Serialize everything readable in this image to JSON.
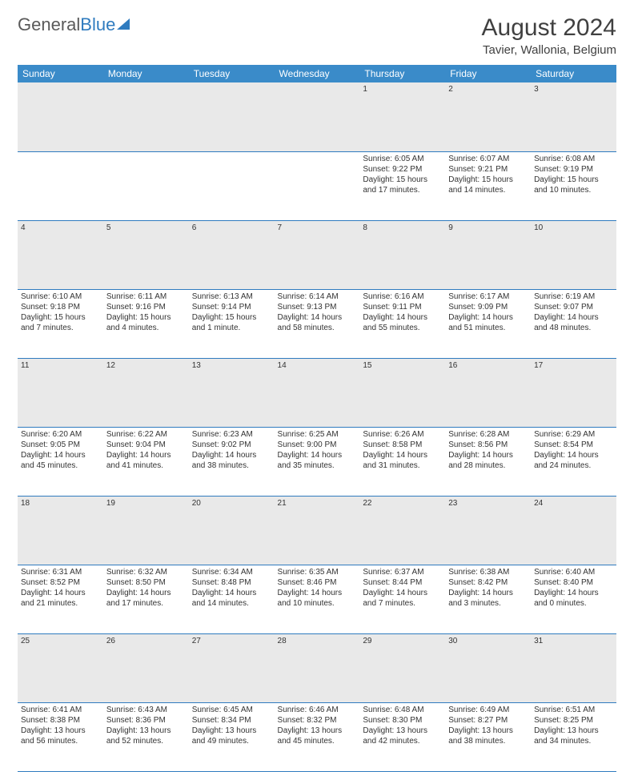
{
  "logo": {
    "text1": "General",
    "text2": "Blue"
  },
  "title": "August 2024",
  "location": "Tavier, Wallonia, Belgium",
  "colors": {
    "header_bg": "#3a8bc9",
    "header_text": "#ffffff",
    "daynum_bg": "#e9e9e9",
    "border": "#2f7bbf",
    "text": "#333333"
  },
  "day_headers": [
    "Sunday",
    "Monday",
    "Tuesday",
    "Wednesday",
    "Thursday",
    "Friday",
    "Saturday"
  ],
  "weeks": [
    {
      "nums": [
        "",
        "",
        "",
        "",
        "1",
        "2",
        "3"
      ],
      "cells": [
        null,
        null,
        null,
        null,
        {
          "sunrise": "6:05 AM",
          "sunset": "9:22 PM",
          "daylight": "15 hours and 17 minutes."
        },
        {
          "sunrise": "6:07 AM",
          "sunset": "9:21 PM",
          "daylight": "15 hours and 14 minutes."
        },
        {
          "sunrise": "6:08 AM",
          "sunset": "9:19 PM",
          "daylight": "15 hours and 10 minutes."
        }
      ]
    },
    {
      "nums": [
        "4",
        "5",
        "6",
        "7",
        "8",
        "9",
        "10"
      ],
      "cells": [
        {
          "sunrise": "6:10 AM",
          "sunset": "9:18 PM",
          "daylight": "15 hours and 7 minutes."
        },
        {
          "sunrise": "6:11 AM",
          "sunset": "9:16 PM",
          "daylight": "15 hours and 4 minutes."
        },
        {
          "sunrise": "6:13 AM",
          "sunset": "9:14 PM",
          "daylight": "15 hours and 1 minute."
        },
        {
          "sunrise": "6:14 AM",
          "sunset": "9:13 PM",
          "daylight": "14 hours and 58 minutes."
        },
        {
          "sunrise": "6:16 AM",
          "sunset": "9:11 PM",
          "daylight": "14 hours and 55 minutes."
        },
        {
          "sunrise": "6:17 AM",
          "sunset": "9:09 PM",
          "daylight": "14 hours and 51 minutes."
        },
        {
          "sunrise": "6:19 AM",
          "sunset": "9:07 PM",
          "daylight": "14 hours and 48 minutes."
        }
      ]
    },
    {
      "nums": [
        "11",
        "12",
        "13",
        "14",
        "15",
        "16",
        "17"
      ],
      "cells": [
        {
          "sunrise": "6:20 AM",
          "sunset": "9:05 PM",
          "daylight": "14 hours and 45 minutes."
        },
        {
          "sunrise": "6:22 AM",
          "sunset": "9:04 PM",
          "daylight": "14 hours and 41 minutes."
        },
        {
          "sunrise": "6:23 AM",
          "sunset": "9:02 PM",
          "daylight": "14 hours and 38 minutes."
        },
        {
          "sunrise": "6:25 AM",
          "sunset": "9:00 PM",
          "daylight": "14 hours and 35 minutes."
        },
        {
          "sunrise": "6:26 AM",
          "sunset": "8:58 PM",
          "daylight": "14 hours and 31 minutes."
        },
        {
          "sunrise": "6:28 AM",
          "sunset": "8:56 PM",
          "daylight": "14 hours and 28 minutes."
        },
        {
          "sunrise": "6:29 AM",
          "sunset": "8:54 PM",
          "daylight": "14 hours and 24 minutes."
        }
      ]
    },
    {
      "nums": [
        "18",
        "19",
        "20",
        "21",
        "22",
        "23",
        "24"
      ],
      "cells": [
        {
          "sunrise": "6:31 AM",
          "sunset": "8:52 PM",
          "daylight": "14 hours and 21 minutes."
        },
        {
          "sunrise": "6:32 AM",
          "sunset": "8:50 PM",
          "daylight": "14 hours and 17 minutes."
        },
        {
          "sunrise": "6:34 AM",
          "sunset": "8:48 PM",
          "daylight": "14 hours and 14 minutes."
        },
        {
          "sunrise": "6:35 AM",
          "sunset": "8:46 PM",
          "daylight": "14 hours and 10 minutes."
        },
        {
          "sunrise": "6:37 AM",
          "sunset": "8:44 PM",
          "daylight": "14 hours and 7 minutes."
        },
        {
          "sunrise": "6:38 AM",
          "sunset": "8:42 PM",
          "daylight": "14 hours and 3 minutes."
        },
        {
          "sunrise": "6:40 AM",
          "sunset": "8:40 PM",
          "daylight": "14 hours and 0 minutes."
        }
      ]
    },
    {
      "nums": [
        "25",
        "26",
        "27",
        "28",
        "29",
        "30",
        "31"
      ],
      "cells": [
        {
          "sunrise": "6:41 AM",
          "sunset": "8:38 PM",
          "daylight": "13 hours and 56 minutes."
        },
        {
          "sunrise": "6:43 AM",
          "sunset": "8:36 PM",
          "daylight": "13 hours and 52 minutes."
        },
        {
          "sunrise": "6:45 AM",
          "sunset": "8:34 PM",
          "daylight": "13 hours and 49 minutes."
        },
        {
          "sunrise": "6:46 AM",
          "sunset": "8:32 PM",
          "daylight": "13 hours and 45 minutes."
        },
        {
          "sunrise": "6:48 AM",
          "sunset": "8:30 PM",
          "daylight": "13 hours and 42 minutes."
        },
        {
          "sunrise": "6:49 AM",
          "sunset": "8:27 PM",
          "daylight": "13 hours and 38 minutes."
        },
        {
          "sunrise": "6:51 AM",
          "sunset": "8:25 PM",
          "daylight": "13 hours and 34 minutes."
        }
      ]
    }
  ],
  "labels": {
    "sunrise": "Sunrise: ",
    "sunset": "Sunset: ",
    "daylight": "Daylight: "
  }
}
